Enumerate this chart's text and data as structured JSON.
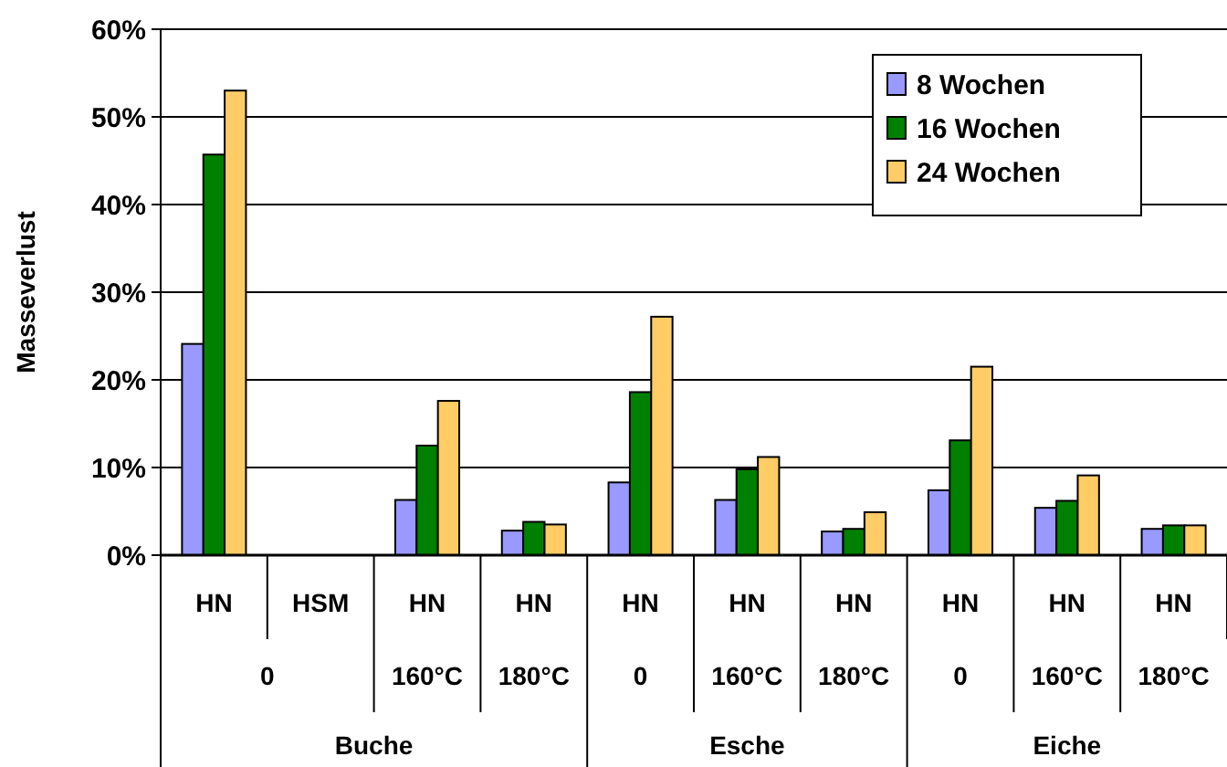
{
  "chart_data": {
    "type": "bar",
    "ylabel": "Masseverlust",
    "categories": [
      "HN",
      "HSM",
      "HN",
      "HN",
      "HN",
      "HN",
      "HN",
      "HN",
      "HN",
      "HN"
    ],
    "series": [
      {
        "name": "8 Wochen",
        "color": "#9999ff",
        "values": [
          24.1,
          null,
          6.3,
          2.8,
          8.3,
          6.3,
          2.7,
          7.4,
          5.4,
          3.0
        ]
      },
      {
        "name": "16 Wochen",
        "color": "#008000",
        "values": [
          45.7,
          null,
          12.5,
          3.8,
          18.6,
          9.8,
          3.0,
          13.1,
          6.2,
          3.4
        ]
      },
      {
        "name": "24 Wochen",
        "color": "#ffcc66",
        "values": [
          53.0,
          null,
          17.6,
          3.5,
          27.2,
          11.2,
          4.9,
          21.5,
          9.1,
          3.4
        ]
      }
    ],
    "ylim": [
      0,
      60
    ],
    "yticks": [
      {
        "value": 0,
        "label": "0%"
      },
      {
        "value": 10,
        "label": "10%"
      },
      {
        "value": 20,
        "label": "20%"
      },
      {
        "value": 30,
        "label": "30%"
      },
      {
        "value": 40,
        "label": "40%"
      },
      {
        "value": 50,
        "label": "50%"
      },
      {
        "value": 60,
        "label": "60%"
      }
    ],
    "grid": "y",
    "legend": "top right",
    "annotations": [
      "0",
      "160°C",
      "180°C",
      "0",
      "160°C",
      "180°C",
      "0",
      "160°C",
      "180°C",
      "Buche",
      "Esche",
      "Eiche"
    ]
  }
}
